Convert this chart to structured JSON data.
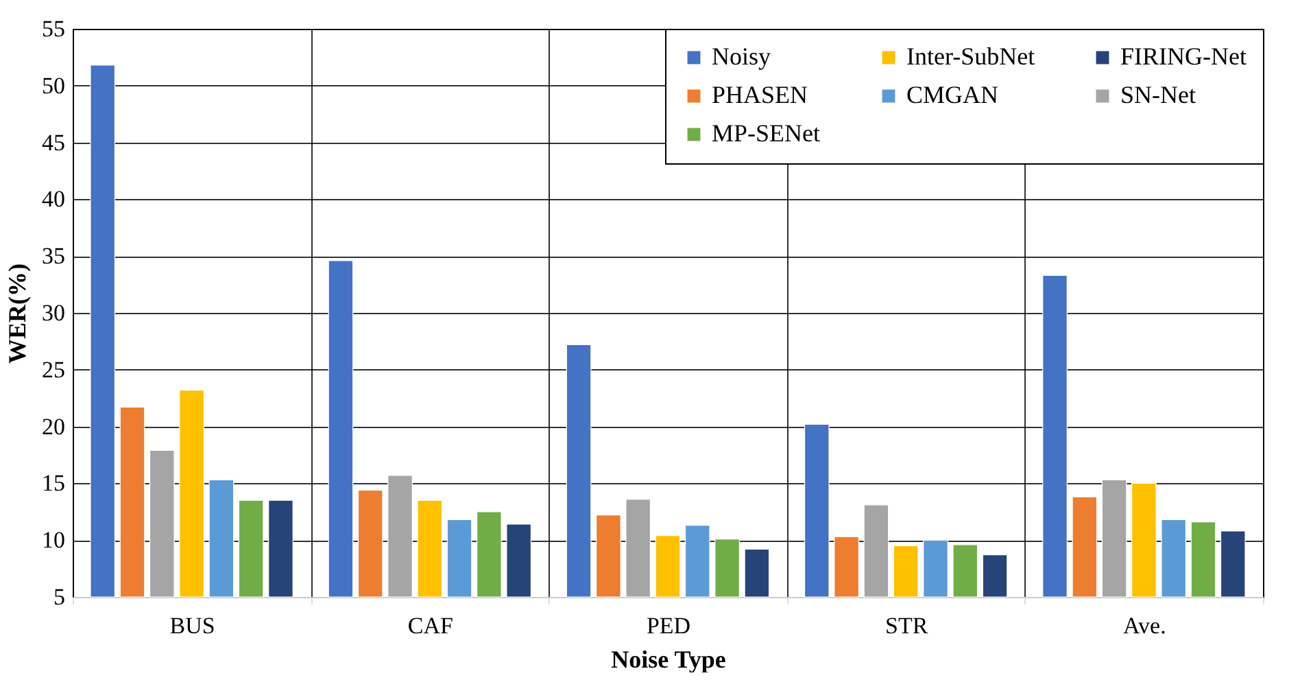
{
  "chart_data": {
    "type": "bar",
    "xlabel": "Noise Type",
    "ylabel": "WER(%)",
    "categories": [
      "BUS",
      "CAF",
      "PED",
      "STR",
      "Ave."
    ],
    "series": [
      {
        "name": "Noisy",
        "color": "#4472c4",
        "values": [
          51.8,
          34.6,
          27.2,
          20.2,
          33.3
        ]
      },
      {
        "name": "PHASEN",
        "color": "#ed7d31",
        "values": [
          21.7,
          14.4,
          12.2,
          10.3,
          13.8
        ]
      },
      {
        "name": "SN-Net",
        "color": "#a5a5a5",
        "values": [
          17.9,
          15.7,
          13.6,
          13.1,
          15.3
        ]
      },
      {
        "name": "Inter-SubNet",
        "color": "#ffc000",
        "values": [
          23.2,
          13.5,
          10.4,
          9.5,
          15.0
        ]
      },
      {
        "name": "CMGAN",
        "color": "#5b9bd5",
        "values": [
          15.3,
          11.8,
          11.3,
          10.0,
          11.8
        ]
      },
      {
        "name": "MP-SENet",
        "color": "#70ad47",
        "values": [
          13.5,
          12.5,
          10.1,
          9.6,
          11.6
        ]
      },
      {
        "name": "FIRING-Net",
        "color": "#264478",
        "values": [
          13.5,
          11.4,
          9.2,
          8.7,
          10.8
        ]
      }
    ],
    "ylim": [
      5,
      55
    ],
    "yticks": [
      5,
      10,
      15,
      20,
      25,
      30,
      35,
      40,
      45,
      50,
      55
    ],
    "grid": true,
    "legend": "top right"
  }
}
